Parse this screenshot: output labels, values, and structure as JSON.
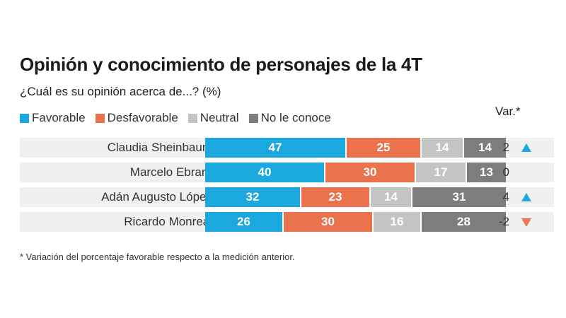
{
  "chart_data": {
    "type": "bar",
    "orientation": "horizontal",
    "stacked": true,
    "title": "Opinión y conocimiento de personajes de la 4T",
    "subtitle": "¿Cuál es su opinión acerca de...? (%)",
    "categories": [
      "Claudia Sheinbaum",
      "Marcelo Ebrard",
      "Adán Augusto López",
      "Ricardo Monreal"
    ],
    "series": [
      {
        "name": "Favorable",
        "color": "#1aa8df",
        "values": [
          47,
          40,
          32,
          26
        ]
      },
      {
        "name": "Desfavorable",
        "color": "#ea734d",
        "values": [
          25,
          30,
          23,
          30
        ]
      },
      {
        "name": "Neutral",
        "color": "#c4c4c4",
        "values": [
          14,
          17,
          14,
          16
        ]
      },
      {
        "name": "No le conoce",
        "color": "#7d7d7d",
        "values": [
          14,
          13,
          31,
          28
        ]
      }
    ],
    "variation": {
      "header": "Var.*",
      "values": [
        2,
        0,
        4,
        -2
      ],
      "labels": [
        "2",
        "0",
        "4",
        "-2"
      ],
      "up_color": "#1aa8df",
      "down_color": "#ea734d"
    },
    "legend_position": "top-left",
    "footnote": "* Variación del porcentaje favorable respecto a la medición anterior.",
    "xlim": [
      0,
      100
    ],
    "grid": false
  }
}
